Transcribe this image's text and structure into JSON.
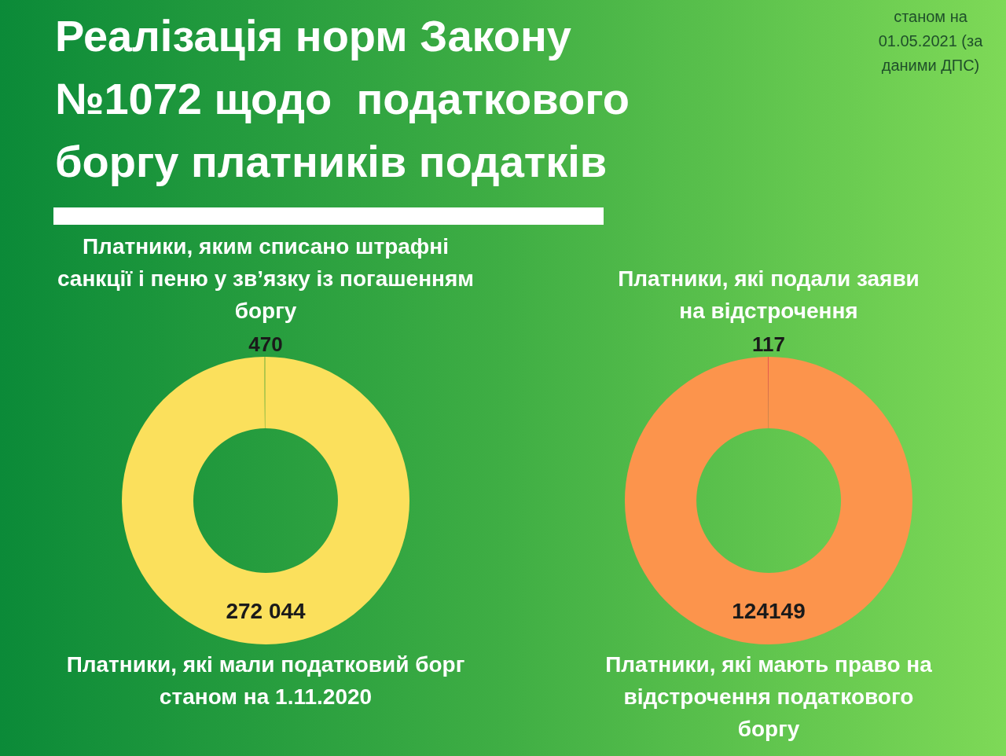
{
  "chart_data": [
    {
      "type": "donut",
      "title": "Реалізація норм Закону №1072 щодо  податкового боргу платників податків",
      "annotations": [
        "станом на 01.05.2021 (за даними ДПС)"
      ],
      "categories": [
        "Платники, яким списано штрафні санкції і пеню у зв’язку із погашенням боргу",
        "Платники, які мали податковий борг станом на 1.11.2020"
      ],
      "values": [
        470,
        272044
      ],
      "value_labels": [
        "470",
        "272 044"
      ],
      "colors": [
        "#b8c84a",
        "#fbe05c"
      ],
      "legend": false
    },
    {
      "type": "donut",
      "categories": [
        "Платники, які подали заяви на відстрочення",
        "Платники, які мають право на відстрочення податкового боргу"
      ],
      "values": [
        117,
        124149
      ],
      "data_labels": true,
      "colors": [
        "#e8584c",
        "#fc944c"
      ],
      "legend": false
    }
  ]
}
